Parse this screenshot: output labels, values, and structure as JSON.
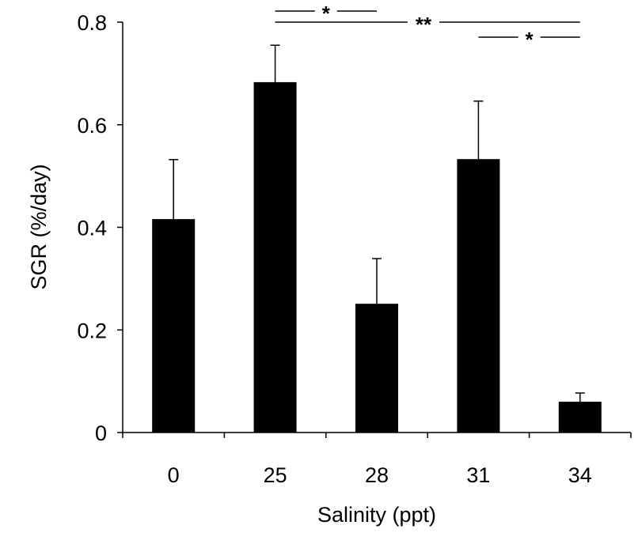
{
  "chart_data": {
    "type": "bar",
    "title": "",
    "xlabel": "Salinity (ppt)",
    "ylabel": "SGR (%/day)",
    "categories": [
      "0",
      "25",
      "28",
      "31",
      "34"
    ],
    "values": [
      0.416,
      0.683,
      0.251,
      0.533,
      0.06
    ],
    "error_upper": [
      0.116,
      0.072,
      0.088,
      0.113,
      0.017
    ],
    "ylim": [
      0,
      0.8
    ],
    "yticks": [
      "0",
      "0.2",
      "0.4",
      "0.6",
      "0.8"
    ],
    "grid": false,
    "bar_color": "#000000",
    "significance": [
      {
        "from": "25",
        "to": "28",
        "label": "*"
      },
      {
        "from": "25",
        "to": "34",
        "label": "**"
      },
      {
        "from": "31",
        "to": "34",
        "label": "*"
      }
    ]
  }
}
